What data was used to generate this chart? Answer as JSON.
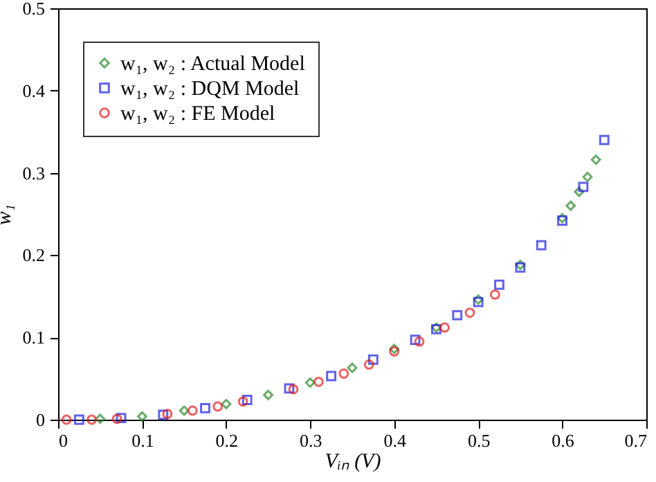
{
  "chart_data": {
    "type": "scatter",
    "xlabel": "Vᵢₙ (V)",
    "ylabel": "w₁",
    "xlim": [
      0,
      0.7
    ],
    "ylim": [
      0,
      0.5
    ],
    "xticks": [
      0,
      0.1,
      0.2,
      0.3,
      0.4,
      0.5,
      0.6,
      0.7
    ],
    "yticks": [
      0,
      0.1,
      0.2,
      0.3,
      0.4,
      0.5
    ],
    "grid": false,
    "legend": "top left",
    "series": [
      {
        "name": "w₁, w₂ : Actual Model",
        "color": "#2a8a2a",
        "marker": "diamond",
        "x": [
          0.05,
          0.1,
          0.15,
          0.2,
          0.25,
          0.3,
          0.35,
          0.4,
          0.45,
          0.5,
          0.55,
          0.6,
          0.61,
          0.62,
          0.63,
          0.64
        ],
        "values": [
          0.001,
          0.004,
          0.011,
          0.019,
          0.03,
          0.045,
          0.063,
          0.086,
          0.112,
          0.146,
          0.188,
          0.245,
          0.26,
          0.277,
          0.295,
          0.316
        ]
      },
      {
        "name": "w₁, w₂ : DQM Model",
        "color": "#1f1fe0",
        "marker": "square",
        "x": [
          0.025,
          0.075,
          0.125,
          0.175,
          0.225,
          0.275,
          0.325,
          0.375,
          0.425,
          0.45,
          0.475,
          0.5,
          0.525,
          0.55,
          0.575,
          0.6,
          0.625,
          0.65
        ],
        "values": [
          0,
          0.002,
          0.006,
          0.014,
          0.024,
          0.038,
          0.053,
          0.073,
          0.097,
          0.11,
          0.127,
          0.143,
          0.164,
          0.185,
          0.212,
          0.242,
          0.283,
          0.34
        ]
      },
      {
        "name": "w₁, w₂ : FE Model",
        "color": "#e02020",
        "marker": "circle",
        "x": [
          0.01,
          0.04,
          0.07,
          0.13,
          0.16,
          0.19,
          0.22,
          0.28,
          0.31,
          0.34,
          0.37,
          0.4,
          0.43,
          0.46,
          0.49,
          0.52
        ],
        "values": [
          0,
          0,
          0.001,
          0.007,
          0.011,
          0.016,
          0.022,
          0.037,
          0.046,
          0.056,
          0.067,
          0.083,
          0.095,
          0.112,
          0.13,
          0.152
        ]
      }
    ]
  }
}
